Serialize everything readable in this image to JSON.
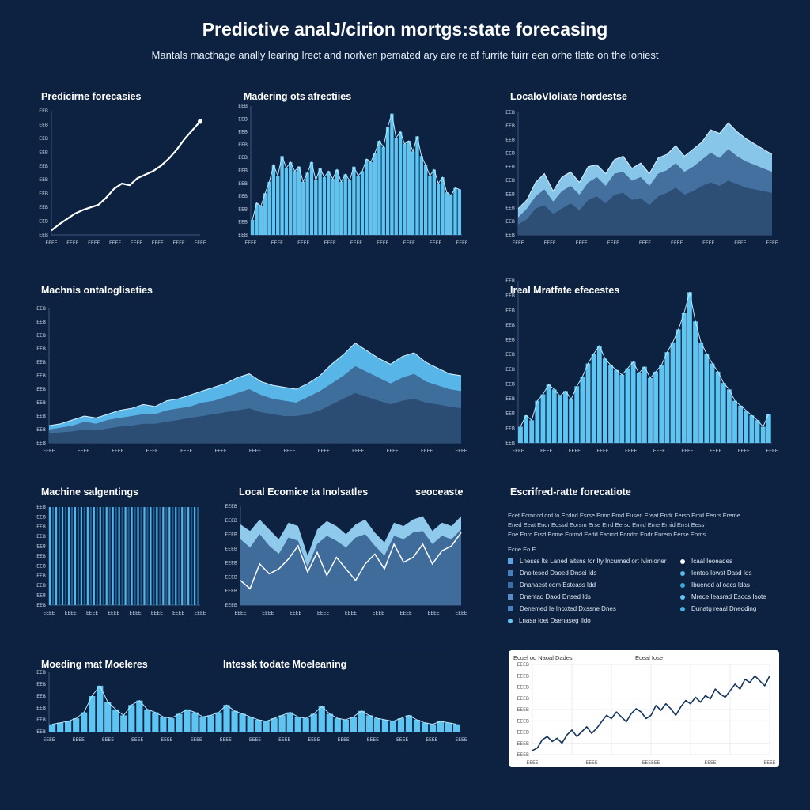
{
  "page": {
    "title": "Predictive analJ/cirion mortgs:state forecasing",
    "subtitle": "Mantals macthage anally learing lrect and norlven pemated ary are re af furrite fuirr een orhe tlate on the loniest"
  },
  "labels": {
    "c1": "Predicirne forecasies",
    "c2": "Madering ots afrectiies",
    "c3": "LocaloVloliate hordestse",
    "c4": "Machnis ontalogliseties",
    "c5": "Ireal Mratfate efecestes",
    "c6": "Machine salgentings",
    "c7a": "Local Ecomice ta Inolsatles",
    "c7b": "seoceaste",
    "c8": "Escrifred-ratte forecatiote",
    "c9a": "Moeding mat Moeleres",
    "c9b": "Intessk todate Moeleaning"
  },
  "legend": {
    "header_lines": [
      "Ecet Ecmricd ord to Ecdnd Esrse Erinc Ernd Eusen Ereat Endr Eerso Errid Eenrs Ereme",
      "Ened Eeat Endr Eossd Eorsm Erse Errd Eerso Ernid Eme Ernid Errst Eess",
      "Ene Enrc Ersd Eome Enrmd Eedd Eacmd Eondm Endr Enrem Eerse Eoms"
    ],
    "group_label": "Ecne Eo E",
    "left_items": [
      "Lnesss Its Laned aitsns tor Ity Incurned ort Ivimioner",
      "Dnoitesed Daoed Dnsei Ids",
      "Dnanaest eom Esteass Idd",
      "Dnentad Daod Dnsed Ids",
      "Denemed Ie Inoxted Dxssne Dnes",
      "Lnasa Ioet Dsenaseg Ildo"
    ],
    "right_items": [
      "Icaal Ieoeades",
      "Ientos Iowst Dasd Ids",
      "Ibuenod al oacs Idas",
      "Mrece Ieasrad Esocs Isote",
      "Dunatg reaal Dnedding"
    ],
    "colors": {
      "left": [
        "#5fa3e0",
        "#4a7fb8",
        "#3e6ea6",
        "#5b8ec8",
        "#4d80bb",
        "#69c4f0"
      ],
      "right": [
        "#ffffff",
        "#5fb8ea",
        "#3ea6da",
        "#62c2f2",
        "#4ab0e4"
      ]
    }
  },
  "card": {
    "header_left": "Ecuel od Naoal Dades",
    "header_right": "Eceal Iose"
  },
  "chart_data": [
    {
      "id": "c1",
      "type": "line",
      "title": "Predicirne forecasies",
      "x": [
        1,
        2,
        3,
        4,
        5,
        6,
        7,
        8,
        9,
        10,
        11,
        12,
        13,
        14,
        15,
        16,
        17,
        18,
        19,
        20
      ],
      "y": [
        5,
        12,
        18,
        24,
        28,
        31,
        34,
        42,
        52,
        58,
        56,
        64,
        68,
        72,
        78,
        86,
        96,
        108,
        118,
        128
      ],
      "ylim": [
        0,
        140
      ],
      "yticks": [
        "EEB",
        "EEB",
        "EEB",
        "EEB",
        "EEB",
        "EEB",
        "EEB",
        "EEB",
        "EEB",
        "EEB"
      ],
      "xticks": [
        "EEEE",
        "EEEE",
        "EEEE",
        "EEEE",
        "EEEE",
        "EEEE",
        "EEEE",
        "EEEE"
      ],
      "colors": {
        "line": "#ffffff"
      }
    },
    {
      "id": "c2",
      "type": "bar",
      "title": "Madering ots afrectiies",
      "values": [
        20,
        42,
        38,
        55,
        70,
        92,
        78,
        104,
        88,
        96,
        84,
        90,
        70,
        82,
        96,
        72,
        88,
        76,
        84,
        74,
        86,
        70,
        80,
        72,
        90,
        78,
        84,
        100,
        96,
        108,
        124,
        116,
        142,
        160,
        128,
        136,
        120,
        124,
        110,
        130,
        104,
        92,
        78,
        86,
        68,
        76,
        56,
        52,
        62,
        60
      ],
      "ylim": [
        0,
        170
      ],
      "yticks": [
        "EEB",
        "EEB",
        "EEB",
        "EEB",
        "EEB",
        "EEB",
        "EEB",
        "EEB",
        "EEB",
        "EEB",
        "EEB"
      ],
      "xticks": [
        "EEEE",
        "EEEE",
        "EEEE",
        "EEEE",
        "EEEE",
        "EEEE",
        "EEEE",
        "EEEE",
        "EEEE"
      ],
      "colors": {
        "bar": "#5ec4f2"
      }
    },
    {
      "id": "c3",
      "type": "area",
      "title": "LocaloVloliate hordestse",
      "series": [
        {
          "name": "s1",
          "values": [
            30,
            40,
            60,
            70,
            50,
            66,
            72,
            60,
            78,
            80,
            70,
            86,
            90,
            76,
            82,
            70,
            88,
            92,
            102,
            90,
            98,
            106,
            120,
            116,
            128,
            118,
            110,
            104,
            98,
            92
          ]
        },
        {
          "name": "s2",
          "values": [
            20,
            30,
            44,
            52,
            38,
            50,
            56,
            46,
            60,
            66,
            56,
            70,
            72,
            62,
            66,
            56,
            70,
            74,
            82,
            72,
            78,
            86,
            94,
            88,
            98,
            90,
            84,
            80,
            76,
            72
          ]
        },
        {
          "name": "s3",
          "values": [
            12,
            18,
            30,
            34,
            24,
            30,
            36,
            28,
            40,
            44,
            36,
            46,
            48,
            40,
            42,
            34,
            44,
            48,
            54,
            46,
            50,
            56,
            60,
            56,
            62,
            58,
            54,
            52,
            50,
            48
          ]
        }
      ],
      "ylim": [
        0,
        140
      ],
      "yticks": [
        "EEB",
        "EEB",
        "EEB",
        "EEB",
        "EEB",
        "EEB",
        "EEB",
        "EEB",
        "EEB",
        "EEB"
      ],
      "xticks": [
        "EEEE",
        "EEEE",
        "EEEE",
        "EEEE",
        "EEEE",
        "EEEE",
        "EEEE",
        "EEEE",
        "EEEE"
      ],
      "colors": {
        "front": "#8fd0f2",
        "mid": "#3f6c9a",
        "back": "#2c4d74"
      }
    },
    {
      "id": "c4",
      "type": "area",
      "title": "Machnis ontalogliseties",
      "series": [
        {
          "name": "s1",
          "values": [
            18,
            20,
            24,
            28,
            26,
            30,
            34,
            36,
            40,
            38,
            44,
            46,
            50,
            54,
            58,
            62,
            68,
            72,
            64,
            60,
            58,
            56,
            62,
            70,
            82,
            92,
            104,
            96,
            88,
            82,
            90,
            94,
            84,
            78,
            72,
            70
          ]
        },
        {
          "name": "s2",
          "values": [
            14,
            16,
            18,
            22,
            20,
            24,
            26,
            28,
            30,
            30,
            34,
            36,
            38,
            42,
            44,
            48,
            52,
            56,
            50,
            46,
            44,
            42,
            48,
            54,
            62,
            70,
            80,
            74,
            68,
            62,
            68,
            72,
            64,
            60,
            56,
            54
          ]
        },
        {
          "name": "s3",
          "values": [
            10,
            11,
            12,
            14,
            13,
            15,
            17,
            18,
            20,
            20,
            22,
            24,
            26,
            28,
            30,
            32,
            34,
            36,
            32,
            30,
            28,
            28,
            30,
            34,
            40,
            46,
            52,
            48,
            44,
            40,
            44,
            46,
            42,
            40,
            38,
            36
          ]
        }
      ],
      "ylim": [
        0,
        140
      ],
      "yticks": [
        "EEB",
        "EEB",
        "EEB",
        "EEB",
        "EEB",
        "EEB",
        "EEB",
        "EEB",
        "EEB",
        "EEB",
        "EEB"
      ],
      "xticks": [
        "EEEE",
        "EEEE",
        "EEEE",
        "EEEE",
        "EEEE",
        "EEEE",
        "EEEE",
        "EEEE",
        "EEEE",
        "EEEE",
        "EEEE",
        "EEEE",
        "EEEE"
      ],
      "colors": {
        "front": "#5cbff0",
        "mid": "#3d6a98",
        "back": "#2a4b72"
      }
    },
    {
      "id": "c5",
      "type": "bar",
      "title": "Ireal Mratfate efecestes",
      "values": [
        20,
        34,
        28,
        52,
        60,
        72,
        66,
        58,
        64,
        54,
        70,
        82,
        98,
        110,
        120,
        104,
        96,
        90,
        84,
        92,
        100,
        86,
        94,
        80,
        88,
        96,
        112,
        124,
        140,
        160,
        186,
        150,
        124,
        110,
        98,
        88,
        74,
        66,
        52,
        46,
        40,
        34,
        28,
        20,
        36
      ],
      "ylim": [
        0,
        200
      ],
      "yticks": [
        "EEB",
        "EEB",
        "EEB",
        "EEB",
        "EEB",
        "EEB",
        "EEB",
        "EEB",
        "EEB",
        "EEB",
        "EEB",
        "EEB"
      ],
      "xticks": [
        "EEEE",
        "EEEE",
        "EEEE",
        "EEEE",
        "EEEE",
        "EEEE",
        "EEEE",
        "EEEE",
        "EEEE",
        "EEEE"
      ],
      "colors": {
        "bar": "#5ec4f2"
      }
    },
    {
      "id": "c6",
      "type": "bar",
      "title": "Machine salgentings",
      "values": [
        100,
        100,
        100,
        100,
        100,
        100,
        100,
        100,
        100,
        100,
        100,
        100,
        100,
        100,
        100,
        100,
        100,
        100,
        100,
        100,
        100,
        100,
        100,
        100,
        100,
        100,
        100,
        100,
        100,
        100,
        100,
        100,
        100,
        100,
        100,
        100,
        100,
        100,
        100,
        100,
        100,
        100,
        100,
        100,
        100,
        100,
        100,
        100
      ],
      "ylim": [
        0,
        100
      ],
      "yticks": [
        "EEB",
        "EEB",
        "EEB",
        "EEB",
        "EEB",
        "EEB",
        "EEB",
        "EEB",
        "EEB",
        "EEB",
        "EEB"
      ],
      "xticks": [
        "EEEE",
        "EEEE",
        "EEEE",
        "EEEE",
        "EEEE",
        "EEEE",
        "EEEE",
        "EEEE"
      ],
      "colors": {
        "bar": "#4fb9ef",
        "alt": "#1e5f96"
      }
    },
    {
      "id": "c7",
      "type": "area",
      "title": "Local Ecomice ta Inolsatles",
      "series": [
        {
          "name": "band-top",
          "values": [
            98,
            90,
            104,
            92,
            80,
            100,
            96,
            60,
            92,
            102,
            96,
            86,
            98,
            104,
            88,
            76,
            100,
            96,
            104,
            108,
            90,
            100,
            96,
            108
          ]
        },
        {
          "name": "band-bottom",
          "values": [
            80,
            70,
            86,
            72,
            62,
            82,
            78,
            46,
            74,
            84,
            78,
            70,
            82,
            86,
            72,
            60,
            84,
            80,
            88,
            90,
            74,
            84,
            80,
            92
          ]
        },
        {
          "name": "line",
          "values": [
            30,
            20,
            50,
            38,
            44,
            56,
            72,
            40,
            64,
            36,
            58,
            44,
            30,
            50,
            62,
            44,
            74,
            52,
            58,
            74,
            50,
            66,
            72,
            88
          ]
        }
      ],
      "ylim": [
        0,
        120
      ],
      "yticks": [
        "EEEB",
        "EEEB",
        "EEEB",
        "EEEB",
        "EEEB",
        "EEEB",
        "EEEB",
        "EEEB"
      ],
      "xticks": [
        "EEEE",
        "EEEE",
        "EEEE",
        "EEEE",
        "EEEE",
        "EEEE",
        "EEEE",
        "EEEE",
        "EEEE"
      ],
      "colors": {
        "band": "#8fc9ec",
        "mid": "#3f6c9a",
        "line": "#ffffff"
      }
    },
    {
      "id": "c9",
      "type": "bar",
      "title": "Moeding mat Moeleres",
      "values": [
        10,
        12,
        14,
        18,
        26,
        48,
        62,
        40,
        30,
        22,
        36,
        42,
        30,
        26,
        20,
        18,
        24,
        30,
        26,
        20,
        22,
        26,
        36,
        28,
        24,
        20,
        16,
        14,
        18,
        22,
        26,
        20,
        18,
        24,
        34,
        24,
        18,
        16,
        20,
        28,
        22,
        18,
        16,
        14,
        18,
        22,
        16,
        12,
        10,
        14,
        12,
        10
      ],
      "ylim": [
        0,
        80
      ],
      "yticks": [
        "EEB",
        "EEB",
        "EEB",
        "EEB",
        "EEB",
        "EEB"
      ],
      "xticks": [
        "EEEE",
        "EEEE",
        "EEEE",
        "EEEE",
        "EEEE",
        "EEEE",
        "EEEE",
        "EEEE",
        "EEEE",
        "EEEE",
        "EEEE",
        "EEEE",
        "EEEE",
        "EEEE",
        "EEEE"
      ],
      "colors": {
        "bar": "#5ec4f2"
      }
    },
    {
      "id": "c10",
      "type": "line",
      "title": "Ecuel od Naoal Dades",
      "y": [
        5,
        8,
        18,
        22,
        16,
        20,
        14,
        24,
        30,
        22,
        28,
        34,
        26,
        32,
        40,
        48,
        44,
        52,
        46,
        40,
        50,
        56,
        52,
        44,
        48,
        60,
        54,
        62,
        56,
        48,
        58,
        66,
        62,
        70,
        64,
        72,
        68,
        80,
        74,
        70,
        78,
        86,
        80,
        92,
        88,
        96,
        90,
        84,
        96
      ],
      "ylim": [
        0,
        110
      ],
      "yticks": [
        "EEEB",
        "EEEB",
        "EEEB",
        "EEEB",
        "EEEB",
        "EEEB",
        "EEEB",
        "EEEB",
        "EEEB"
      ],
      "xticks": [
        "EEEE",
        "EEEE",
        "EEEEEE",
        "EEEE",
        "EEEE"
      ],
      "colors": {
        "line": "#15355c",
        "grid": "#e3e8ef"
      }
    }
  ]
}
